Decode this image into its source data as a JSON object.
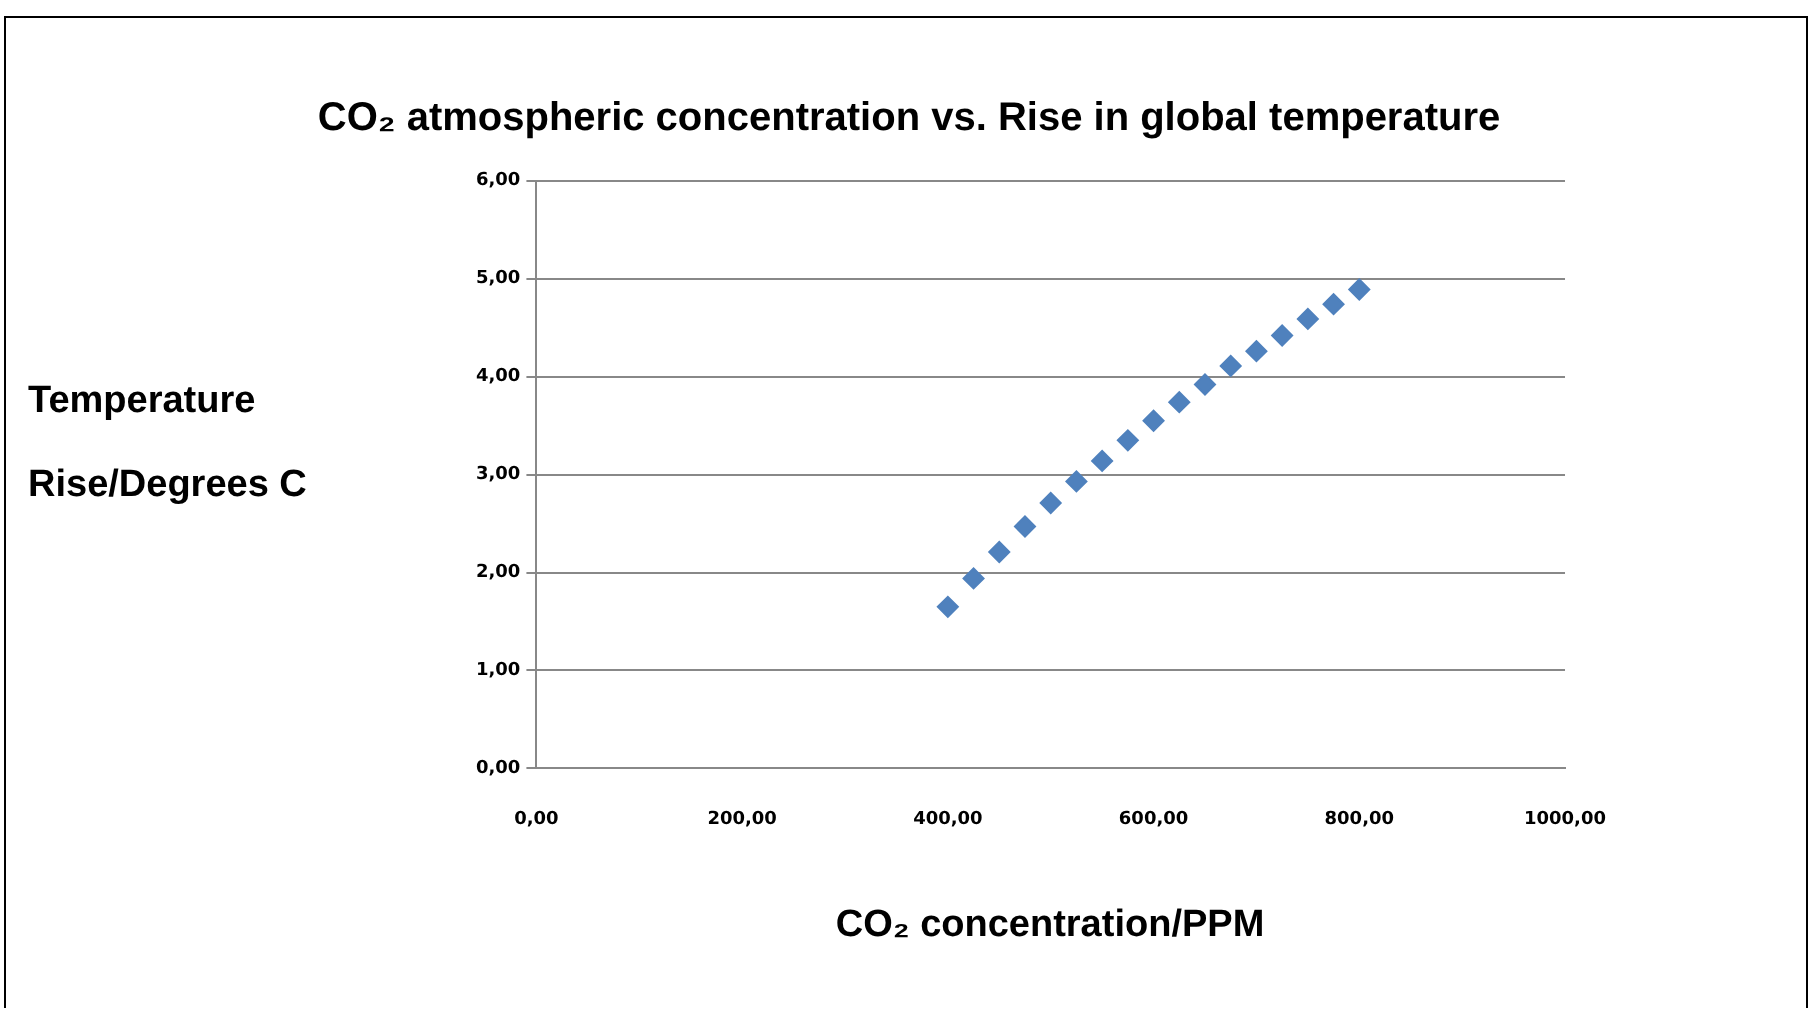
{
  "chart_data": {
    "type": "scatter",
    "title": "CO₂ atmospheric concentration vs. Rise in global temperature",
    "xlabel": "CO₂ concentration/PPM",
    "ylabel": "Temperature Rise/Degrees C",
    "x": [
      400,
      425,
      450,
      475,
      500,
      525,
      550,
      575,
      600,
      625,
      650,
      675,
      700,
      725,
      750,
      775,
      800
    ],
    "series": [
      {
        "color": "#4f81bd",
        "values": [
          1.65,
          1.94,
          2.21,
          2.47,
          2.71,
          2.93,
          3.14,
          3.35,
          3.55,
          3.74,
          3.92,
          4.11,
          4.26,
          4.42,
          4.59,
          4.74,
          4.89
        ]
      }
    ],
    "xlim": [
      0,
      1000
    ],
    "xticks": [
      {
        "value": 0,
        "label": "0,00"
      },
      {
        "value": 200,
        "label": "200,00"
      },
      {
        "value": 400,
        "label": "400,00"
      },
      {
        "value": 600,
        "label": "600,00"
      },
      {
        "value": 800,
        "label": "800,00"
      },
      {
        "value": 1000,
        "label": "1000,00"
      }
    ],
    "ylim": [
      0,
      6
    ],
    "yticks": [
      {
        "value": 0,
        "label": "0,00"
      },
      {
        "value": 1,
        "label": "1,00"
      },
      {
        "value": 2,
        "label": "2,00"
      },
      {
        "value": 3,
        "label": "3,00"
      },
      {
        "value": 4,
        "label": "4,00"
      },
      {
        "value": 5,
        "label": "5,00"
      },
      {
        "value": 6,
        "label": "6,00"
      }
    ],
    "grid": "y",
    "legend": false,
    "marker": "diamond"
  }
}
